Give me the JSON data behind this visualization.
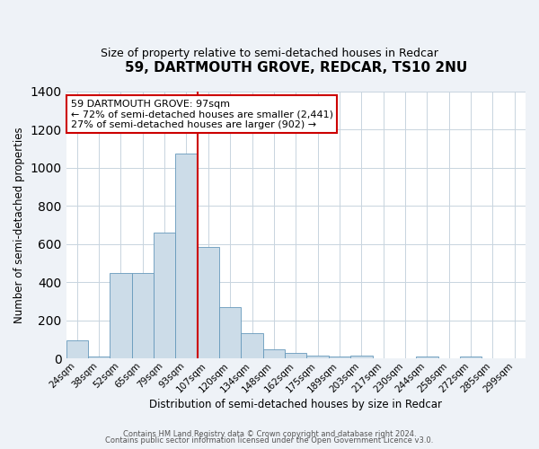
{
  "title": "59, DARTMOUTH GROVE, REDCAR, TS10 2NU",
  "subtitle": "Size of property relative to semi-detached houses in Redcar",
  "xlabel": "Distribution of semi-detached houses by size in Redcar",
  "ylabel": "Number of semi-detached properties",
  "bin_labels": [
    "24sqm",
    "38sqm",
    "52sqm",
    "65sqm",
    "79sqm",
    "93sqm",
    "107sqm",
    "120sqm",
    "134sqm",
    "148sqm",
    "162sqm",
    "175sqm",
    "189sqm",
    "203sqm",
    "217sqm",
    "230sqm",
    "244sqm",
    "258sqm",
    "272sqm",
    "285sqm",
    "299sqm"
  ],
  "bar_heights": [
    95,
    10,
    450,
    450,
    660,
    1075,
    585,
    270,
    135,
    50,
    32,
    15,
    13,
    15,
    0,
    0,
    10,
    0,
    10,
    0,
    0
  ],
  "bar_color": "#ccdce8",
  "bar_edge_color": "#6699bb",
  "property_line_x": 6,
  "property_line_color": "#cc0000",
  "annotation_title": "59 DARTMOUTH GROVE: 97sqm",
  "annotation_line1": "← 72% of semi-detached houses are smaller (2,441)",
  "annotation_line2": "27% of semi-detached houses are larger (902) →",
  "annotation_box_color": "#ffffff",
  "annotation_box_edge": "#cc0000",
  "ylim": [
    0,
    1400
  ],
  "yticks": [
    0,
    200,
    400,
    600,
    800,
    1000,
    1200,
    1400
  ],
  "footer_line1": "Contains HM Land Registry data © Crown copyright and database right 2024.",
  "footer_line2": "Contains public sector information licensed under the Open Government Licence v3.0.",
  "background_color": "#eef2f7",
  "plot_background": "#ffffff"
}
